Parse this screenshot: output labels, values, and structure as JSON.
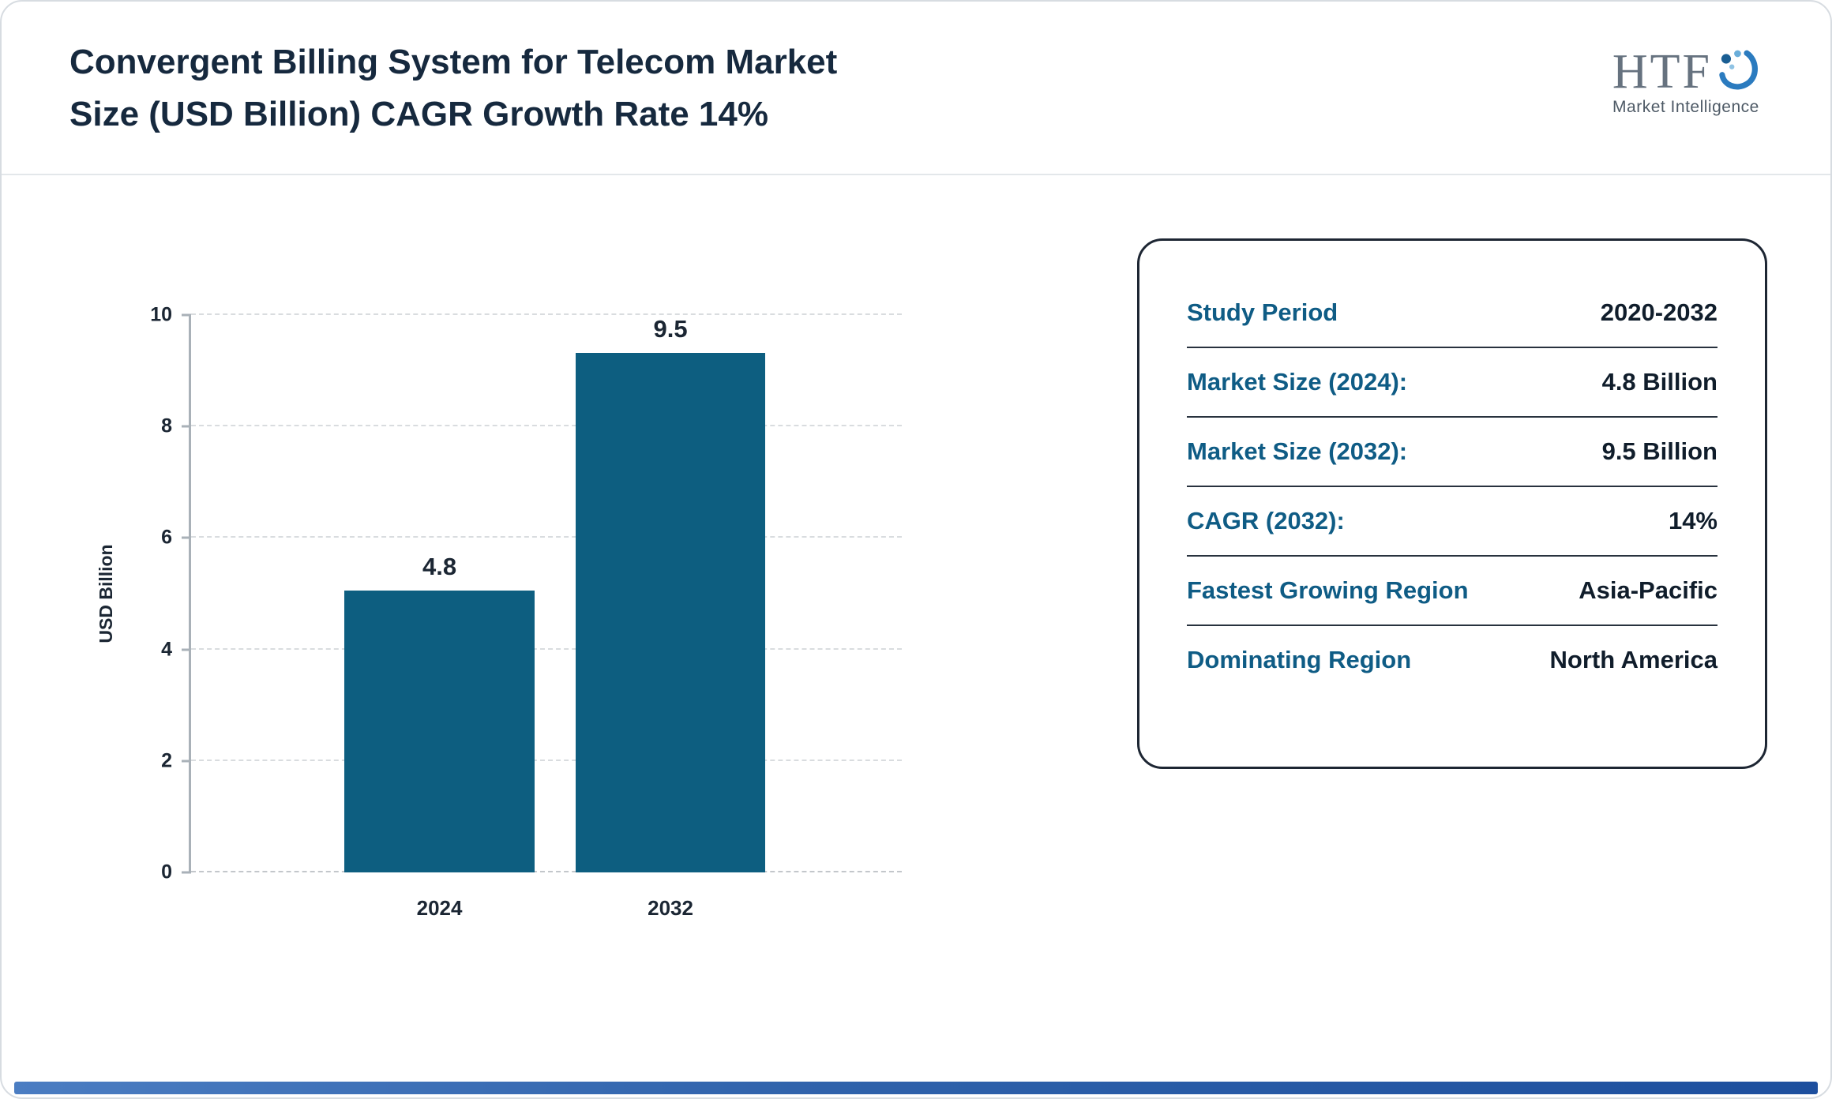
{
  "page": {
    "title_line1": "Convergent Billing System for Telecom Market",
    "title_line2": "Size (USD Billion) CAGR Growth Rate 14%",
    "title_color": "#16293e"
  },
  "logo": {
    "text": "HTF",
    "subtext": "Market Intelligence"
  },
  "chart_data": {
    "type": "bar",
    "title": "Convergent Billing System for Telecom Market Size (USD Billion) CAGR Growth Rate 14%",
    "categories": [
      "2024",
      "2032"
    ],
    "values": [
      4.8,
      9.5
    ],
    "data_labels": [
      "4.8",
      "9.5"
    ],
    "xlabel": "",
    "ylabel": "USD Billion",
    "ylim": [
      0,
      10
    ],
    "yticks": [
      "0",
      "2",
      "4",
      "6",
      "8",
      "10"
    ],
    "bar_color": "#0d5e80",
    "grid": "dashed horizontal gridlines",
    "legend": "none",
    "bars_scaled_so_max_reaches_top_gridline": true
  },
  "info_card": {
    "rows": [
      {
        "label": "Study Period",
        "value": "2020-2032"
      },
      {
        "label": "Market Size (2024):",
        "value": "4.8 Billion"
      },
      {
        "label": "Market Size (2032):",
        "value": "9.5 Billion"
      },
      {
        "label": "CAGR (2032):",
        "value": "14%"
      },
      {
        "label": "Fastest Growing Region",
        "value": "Asia-Pacific"
      },
      {
        "label": "Dominating Region",
        "value": "North America"
      }
    ],
    "label_color": "#0f5c85",
    "value_color": "#101d2b"
  },
  "footer": {
    "accent_gradient": [
      "#4b7dc2",
      "#1d4f9e"
    ]
  }
}
